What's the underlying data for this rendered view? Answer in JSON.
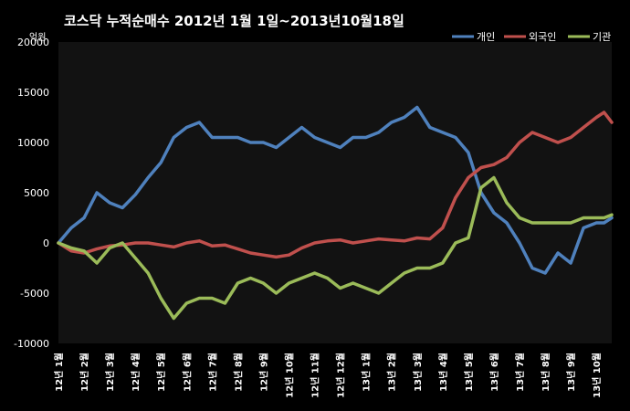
{
  "chart_data": {
    "type": "line",
    "title": "코스닥  누적순매수 2012년 1월 1일~2013년10월18일",
    "unit_label": "억원",
    "ylim": [
      -10000,
      20000
    ],
    "yticks": [
      20000,
      15000,
      10000,
      5000,
      0,
      -5000,
      -10000
    ],
    "ytick_labels": [
      "20000",
      "15000",
      "10000",
      "5000",
      "0",
      "-5000",
      "-10000"
    ],
    "grid": false,
    "legend_position": "top-right",
    "x_labels": [
      "12년 1월",
      "12년 2월",
      "12년 3월",
      "12년 4월",
      "12년 5월",
      "12년 6월",
      "12년 7월",
      "12년 8월",
      "12년 9월",
      "12년 10월",
      "12년 11월",
      "12년 12월",
      "13년 1월",
      "13년 2월",
      "13년 3월",
      "13년 4월",
      "13년 5월",
      "13년 6월",
      "13년 7월",
      "13년 8월",
      "13년 9월",
      "13년 10월"
    ],
    "x": [
      0,
      0.5,
      1,
      1.5,
      2,
      2.5,
      3,
      3.5,
      4,
      4.5,
      5,
      5.5,
      6,
      6.5,
      7,
      7.5,
      8,
      8.5,
      9,
      9.5,
      10,
      10.5,
      11,
      11.5,
      12,
      12.5,
      13,
      13.5,
      14,
      14.5,
      15,
      15.5,
      16,
      16.5,
      17,
      17.5,
      18,
      18.5,
      19,
      19.5,
      20,
      20.5,
      21,
      21.3,
      21.6
    ],
    "series": [
      {
        "name": "개인",
        "color": "#4f81bd",
        "values": [
          0,
          1500,
          2500,
          5000,
          4000,
          3500,
          4800,
          6500,
          8000,
          10500,
          11500,
          12000,
          10500,
          10500,
          10500,
          10000,
          10000,
          9500,
          10500,
          11500,
          10500,
          10000,
          9500,
          10500,
          10500,
          11000,
          12000,
          12500,
          13500,
          11500,
          11000,
          10500,
          9000,
          5000,
          3000,
          2000,
          0,
          -2500,
          -3000,
          -1000,
          -2000,
          1500,
          2000,
          2000,
          2500
        ]
      },
      {
        "name": "외국인",
        "color": "#c0504d",
        "values": [
          0,
          -800,
          -1000,
          -600,
          -300,
          -200,
          0,
          0,
          -200,
          -400,
          0,
          200,
          -300,
          -200,
          -600,
          -1000,
          -1200,
          -1400,
          -1200,
          -500,
          0,
          200,
          300,
          0,
          200,
          400,
          300,
          200,
          500,
          400,
          1500,
          4500,
          6500,
          7500,
          7800,
          8500,
          10000,
          11000,
          10500,
          10000,
          10500,
          11500,
          12500,
          13000,
          12000
        ]
      },
      {
        "name": "기관",
        "color": "#9bbb59",
        "values": [
          0,
          -500,
          -800,
          -2000,
          -500,
          0,
          -1500,
          -3000,
          -5500,
          -7500,
          -6000,
          -5500,
          -5500,
          -6000,
          -4000,
          -3500,
          -4000,
          -5000,
          -4000,
          -3500,
          -3000,
          -3500,
          -4500,
          -4000,
          -4500,
          -5000,
          -4000,
          -3000,
          -2500,
          -2500,
          -2000,
          0,
          500,
          5500,
          6500,
          4000,
          2500,
          2000,
          2000,
          2000,
          2000,
          2500,
          2500,
          2500,
          2800
        ]
      }
    ]
  }
}
